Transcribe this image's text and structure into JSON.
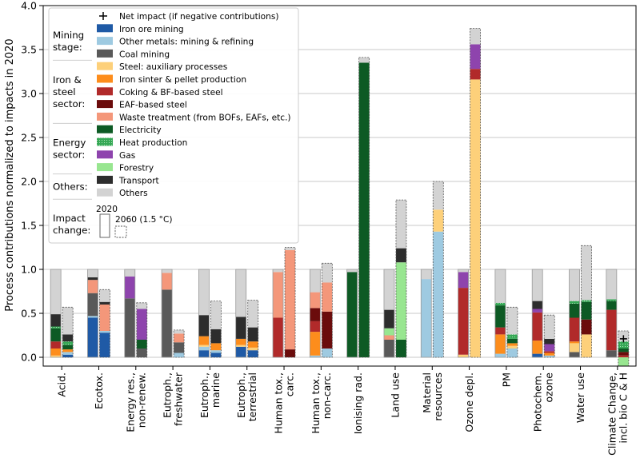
{
  "chart_data": {
    "type": "bar",
    "stacked": true,
    "ylabel": "Process contributions normalized to impacts in 2020",
    "ylim": [
      -0.1,
      4.0
    ],
    "yticks": [
      "0.0",
      "0.5",
      "1.0",
      "1.5",
      "2.0",
      "2.5",
      "3.0",
      "3.5",
      "4.0"
    ],
    "grid": "horizontal",
    "legend_position": "top-left",
    "categories": [
      {
        "label": [
          "Acid."
        ]
      },
      {
        "label": [
          "Ecotox."
        ]
      },
      {
        "label": [
          "Energy res.,",
          "non-renew."
        ]
      },
      {
        "label": [
          "Eutroph.,",
          "freshwater"
        ]
      },
      {
        "label": [
          "Eutroph.,",
          "marine"
        ]
      },
      {
        "label": [
          "Eutroph.,",
          "terrestrial"
        ]
      },
      {
        "label": [
          "Human tox.,",
          "carc."
        ]
      },
      {
        "label": [
          "Human tox.,",
          "non-carc."
        ]
      },
      {
        "label": [
          "Ionising rad."
        ]
      },
      {
        "label": [
          "Land use"
        ]
      },
      {
        "label": [
          "Material",
          "resources"
        ]
      },
      {
        "label": [
          "Ozone depl."
        ]
      },
      {
        "label": [
          "PM"
        ]
      },
      {
        "label": [
          "Photochem.",
          "ozone"
        ]
      },
      {
        "label": [
          "Water use"
        ]
      },
      {
        "label": [
          "Climate Change,",
          "incl. bio C & H"
        ]
      }
    ],
    "processes": [
      {
        "key": "iron_ore",
        "name": "Iron ore mining",
        "color": "#1f5aa6"
      },
      {
        "key": "other_metals",
        "name": "Other metals: mining & refining",
        "color": "#9ecae1"
      },
      {
        "key": "coal",
        "name": "Coal mining",
        "color": "#595959"
      },
      {
        "key": "steel_aux",
        "name": "Steel: auxiliary processes",
        "color": "#fdd07a"
      },
      {
        "key": "sinter",
        "name": "Iron sinter & pellet production",
        "color": "#fd8d1c"
      },
      {
        "key": "coking_bf",
        "name": "Coking & BF-based steel",
        "color": "#b12a2a"
      },
      {
        "key": "eaf",
        "name": "EAF-based steel",
        "color": "#6b0c0c"
      },
      {
        "key": "waste",
        "name": "Waste treatment (from BOFs, EAFs, etc.)",
        "color": "#f4977a"
      },
      {
        "key": "electricity",
        "name": "Electricity",
        "color": "#0d5a24"
      },
      {
        "key": "heat",
        "name": "Heat production",
        "color": "#35a855"
      },
      {
        "key": "gas",
        "name": "Gas",
        "color": "#8e44ad"
      },
      {
        "key": "forestry",
        "name": "Forestry",
        "color": "#98e690"
      },
      {
        "key": "transport",
        "name": "Transport",
        "color": "#2d2d2d"
      },
      {
        "key": "others",
        "name": "Others",
        "color": "#d3d3d3"
      }
    ],
    "series": [
      {
        "name": "2020",
        "values": [
          {
            "iron_ore": 0.0,
            "other_metals": 0.0,
            "coal": 0.0,
            "steel_aux": 0.02,
            "sinter": 0.08,
            "coking_bf": 0.08,
            "eaf": 0.0,
            "waste": 0.0,
            "electricity": 0.15,
            "heat": 0.02,
            "gas": 0.0,
            "forestry": 0.0,
            "transport": 0.14,
            "others": 0.51
          },
          {
            "iron_ore": 0.45,
            "other_metals": 0.02,
            "coal": 0.26,
            "steel_aux": 0.0,
            "sinter": 0.0,
            "coking_bf": 0.0,
            "eaf": 0.0,
            "waste": 0.15,
            "electricity": 0.0,
            "heat": 0.0,
            "gas": 0.0,
            "forestry": 0.0,
            "transport": 0.03,
            "others": 0.09
          },
          {
            "iron_ore": 0.0,
            "other_metals": 0.0,
            "coal": 0.67,
            "steel_aux": 0.0,
            "sinter": 0.0,
            "coking_bf": 0.0,
            "eaf": 0.0,
            "waste": 0.0,
            "electricity": 0.0,
            "heat": 0.0,
            "gas": 0.25,
            "forestry": 0.0,
            "transport": 0.0,
            "others": 0.08
          },
          {
            "iron_ore": 0.0,
            "other_metals": 0.0,
            "coal": 0.77,
            "steel_aux": 0.0,
            "sinter": 0.0,
            "coking_bf": 0.0,
            "eaf": 0.0,
            "waste": 0.19,
            "electricity": 0.0,
            "heat": 0.0,
            "gas": 0.0,
            "forestry": 0.0,
            "transport": 0.0,
            "others": 0.04
          },
          {
            "iron_ore": 0.08,
            "other_metals": 0.04,
            "coal": 0.0,
            "steel_aux": 0.02,
            "sinter": 0.1,
            "coking_bf": 0.0,
            "eaf": 0.0,
            "waste": 0.0,
            "electricity": 0.0,
            "heat": 0.0,
            "gas": 0.0,
            "forestry": 0.0,
            "transport": 0.24,
            "others": 0.52
          },
          {
            "iron_ore": 0.12,
            "other_metals": 0.0,
            "coal": 0.0,
            "steel_aux": 0.02,
            "sinter": 0.07,
            "coking_bf": 0.0,
            "eaf": 0.0,
            "waste": 0.0,
            "electricity": 0.0,
            "heat": 0.0,
            "gas": 0.0,
            "forestry": 0.0,
            "transport": 0.25,
            "others": 0.54
          },
          {
            "iron_ore": 0.0,
            "other_metals": 0.0,
            "coal": 0.0,
            "steel_aux": 0.0,
            "sinter": 0.0,
            "coking_bf": 0.45,
            "eaf": 0.0,
            "waste": 0.52,
            "electricity": 0.0,
            "heat": 0.0,
            "gas": 0.0,
            "forestry": 0.0,
            "transport": 0.0,
            "others": 0.03
          },
          {
            "iron_ore": 0.0,
            "other_metals": 0.02,
            "coal": 0.0,
            "steel_aux": 0.0,
            "sinter": 0.27,
            "coking_bf": 0.12,
            "eaf": 0.15,
            "waste": 0.18,
            "electricity": 0.0,
            "heat": 0.0,
            "gas": 0.0,
            "forestry": 0.0,
            "transport": 0.0,
            "others": 0.26
          },
          {
            "iron_ore": 0.0,
            "other_metals": 0.0,
            "coal": 0.0,
            "steel_aux": 0.0,
            "sinter": 0.0,
            "coking_bf": 0.0,
            "eaf": 0.0,
            "waste": 0.0,
            "electricity": 0.97,
            "heat": 0.0,
            "gas": 0.0,
            "forestry": 0.0,
            "transport": 0.0,
            "others": 0.03
          },
          {
            "iron_ore": 0.0,
            "other_metals": 0.0,
            "coal": 0.2,
            "steel_aux": 0.0,
            "sinter": 0.0,
            "coking_bf": 0.0,
            "eaf": 0.0,
            "waste": 0.05,
            "electricity": 0.0,
            "heat": 0.0,
            "gas": 0.0,
            "forestry": 0.08,
            "transport": 0.21,
            "others": 0.46
          },
          {
            "iron_ore": 0.0,
            "other_metals": 0.89,
            "coal": 0.0,
            "steel_aux": 0.0,
            "sinter": 0.0,
            "coking_bf": 0.0,
            "eaf": 0.0,
            "waste": 0.0,
            "electricity": 0.0,
            "heat": 0.0,
            "gas": 0.0,
            "forestry": 0.0,
            "transport": 0.0,
            "others": 0.11
          },
          {
            "iron_ore": 0.0,
            "other_metals": 0.0,
            "coal": 0.0,
            "steel_aux": 0.03,
            "sinter": 0.0,
            "coking_bf": 0.76,
            "eaf": 0.0,
            "waste": 0.0,
            "electricity": 0.0,
            "heat": 0.0,
            "gas": 0.18,
            "forestry": 0.0,
            "transport": 0.0,
            "others": 0.03
          },
          {
            "iron_ore": 0.0,
            "other_metals": 0.04,
            "coal": 0.0,
            "steel_aux": 0.0,
            "sinter": 0.22,
            "coking_bf": 0.08,
            "eaf": 0.0,
            "waste": 0.0,
            "electricity": 0.25,
            "heat": 0.03,
            "gas": 0.0,
            "forestry": 0.0,
            "transport": 0.0,
            "others": 0.38
          },
          {
            "iron_ore": 0.04,
            "other_metals": 0.0,
            "coal": 0.0,
            "steel_aux": 0.0,
            "sinter": 0.15,
            "coking_bf": 0.32,
            "eaf": 0.0,
            "waste": 0.0,
            "electricity": 0.0,
            "heat": 0.0,
            "gas": 0.04,
            "forestry": 0.0,
            "transport": 0.09,
            "others": 0.36
          },
          {
            "iron_ore": 0.0,
            "other_metals": 0.0,
            "coal": 0.06,
            "steel_aux": 0.1,
            "sinter": 0.02,
            "coking_bf": 0.27,
            "eaf": 0.0,
            "waste": 0.0,
            "electricity": 0.16,
            "heat": 0.03,
            "gas": 0.0,
            "forestry": 0.0,
            "transport": 0.0,
            "others": 0.36
          },
          {
            "iron_ore": 0.0,
            "other_metals": 0.0,
            "coal": 0.08,
            "steel_aux": 0.0,
            "sinter": 0.0,
            "coking_bf": 0.46,
            "eaf": 0.0,
            "waste": 0.0,
            "electricity": 0.1,
            "heat": 0.02,
            "gas": 0.0,
            "forestry": 0.0,
            "transport": 0.0,
            "others": 0.34
          }
        ]
      },
      {
        "name": "2060 (1.5 °C)",
        "values": [
          {
            "iron_ore": 0.03,
            "other_metals": 0.03,
            "coal": 0.0,
            "steel_aux": 0.0,
            "sinter": 0.03,
            "coking_bf": 0.0,
            "eaf": 0.0,
            "waste": 0.0,
            "electricity": 0.05,
            "heat": 0.04,
            "gas": 0.0,
            "forestry": 0.0,
            "transport": 0.08,
            "others": 0.31
          },
          {
            "iron_ore": 0.28,
            "other_metals": 0.02,
            "coal": 0.0,
            "steel_aux": 0.0,
            "sinter": 0.0,
            "coking_bf": 0.0,
            "eaf": 0.0,
            "waste": 0.3,
            "electricity": 0.0,
            "heat": 0.0,
            "gas": 0.0,
            "forestry": 0.0,
            "transport": 0.03,
            "others": 0.14
          },
          {
            "iron_ore": 0.0,
            "other_metals": 0.0,
            "coal": 0.1,
            "steel_aux": 0.0,
            "sinter": 0.0,
            "coking_bf": 0.0,
            "eaf": 0.0,
            "waste": 0.0,
            "electricity": 0.1,
            "heat": 0.0,
            "gas": 0.35,
            "forestry": 0.0,
            "transport": 0.0,
            "others": 0.07
          },
          {
            "iron_ore": 0.0,
            "other_metals": 0.05,
            "coal": 0.12,
            "steel_aux": 0.0,
            "sinter": 0.0,
            "coking_bf": 0.0,
            "eaf": 0.0,
            "waste": 0.1,
            "electricity": 0.0,
            "heat": 0.0,
            "gas": 0.0,
            "forestry": 0.0,
            "transport": 0.0,
            "others": 0.04
          },
          {
            "iron_ore": 0.05,
            "other_metals": 0.03,
            "coal": 0.0,
            "steel_aux": 0.0,
            "sinter": 0.08,
            "coking_bf": 0.0,
            "eaf": 0.0,
            "waste": 0.0,
            "electricity": 0.0,
            "heat": 0.0,
            "gas": 0.0,
            "forestry": 0.0,
            "transport": 0.16,
            "others": 0.32
          },
          {
            "iron_ore": 0.08,
            "other_metals": 0.0,
            "coal": 0.0,
            "steel_aux": 0.03,
            "sinter": 0.07,
            "coking_bf": 0.0,
            "eaf": 0.0,
            "waste": 0.0,
            "electricity": 0.0,
            "heat": 0.0,
            "gas": 0.0,
            "forestry": 0.0,
            "transport": 0.16,
            "others": 0.31
          },
          {
            "iron_ore": 0.0,
            "other_metals": 0.0,
            "coal": 0.0,
            "steel_aux": 0.0,
            "sinter": 0.0,
            "coking_bf": 0.0,
            "eaf": 0.09,
            "waste": 1.13,
            "electricity": 0.0,
            "heat": 0.0,
            "gas": 0.0,
            "forestry": 0.0,
            "transport": 0.0,
            "others": 0.03
          },
          {
            "iron_ore": 0.0,
            "other_metals": 0.1,
            "coal": 0.0,
            "steel_aux": 0.0,
            "sinter": 0.0,
            "coking_bf": 0.0,
            "eaf": 0.42,
            "waste": 0.33,
            "electricity": 0.0,
            "heat": 0.0,
            "gas": 0.0,
            "forestry": 0.0,
            "transport": 0.0,
            "others": 0.22
          },
          {
            "iron_ore": 0.0,
            "other_metals": 0.0,
            "coal": 0.0,
            "steel_aux": 0.0,
            "sinter": 0.0,
            "coking_bf": 0.0,
            "eaf": 0.0,
            "waste": 0.0,
            "electricity": 3.35,
            "heat": 0.0,
            "gas": 0.0,
            "forestry": 0.0,
            "transport": 0.0,
            "others": 0.06
          },
          {
            "iron_ore": 0.0,
            "other_metals": 0.0,
            "coal": 0.0,
            "steel_aux": 0.0,
            "sinter": 0.0,
            "coking_bf": 0.0,
            "eaf": 0.0,
            "waste": 0.0,
            "electricity": 0.2,
            "heat": 0.0,
            "gas": 0.0,
            "forestry": 0.88,
            "transport": 0.16,
            "others": 0.55
          },
          {
            "iron_ore": 0.0,
            "other_metals": 1.43,
            "coal": 0.0,
            "steel_aux": 0.25,
            "sinter": 0.0,
            "coking_bf": 0.0,
            "eaf": 0.0,
            "waste": 0.0,
            "electricity": 0.0,
            "heat": 0.0,
            "gas": 0.0,
            "forestry": 0.0,
            "transport": 0.0,
            "others": 0.32
          },
          {
            "iron_ore": 0.0,
            "other_metals": 0.0,
            "coal": 0.0,
            "steel_aux": 3.16,
            "sinter": 0.0,
            "coking_bf": 0.12,
            "eaf": 0.0,
            "waste": 0.0,
            "electricity": 0.0,
            "heat": 0.0,
            "gas": 0.28,
            "forestry": 0.0,
            "transport": 0.0,
            "others": 0.18
          },
          {
            "iron_ore": 0.0,
            "other_metals": 0.1,
            "coal": 0.0,
            "steel_aux": 0.03,
            "sinter": 0.03,
            "coking_bf": 0.0,
            "eaf": 0.0,
            "waste": 0.0,
            "electricity": 0.05,
            "heat": 0.05,
            "gas": 0.0,
            "forestry": 0.0,
            "transport": 0.0,
            "others": 0.31
          },
          {
            "iron_ore": 0.0,
            "other_metals": 0.02,
            "coal": 0.0,
            "steel_aux": 0.0,
            "sinter": 0.03,
            "coking_bf": 0.02,
            "eaf": 0.0,
            "waste": 0.0,
            "electricity": 0.0,
            "heat": 0.0,
            "gas": 0.08,
            "forestry": 0.0,
            "transport": 0.06,
            "others": 0.27
          },
          {
            "iron_ore": 0.0,
            "other_metals": 0.0,
            "coal": 0.0,
            "steel_aux": 0.26,
            "sinter": 0.0,
            "coking_bf": 0.0,
            "eaf": 0.17,
            "waste": 0.0,
            "electricity": 0.2,
            "heat": 0.02,
            "gas": 0.0,
            "forestry": 0.0,
            "transport": 0.0,
            "others": 0.62
          },
          {
            "iron_ore": 0.0,
            "other_metals": 0.0,
            "coal": 0.0,
            "steel_aux": 0.0,
            "sinter": 0.0,
            "coking_bf": 0.02,
            "eaf": 0.04,
            "waste": 0.0,
            "electricity": 0.04,
            "heat": 0.08,
            "gas": 0.0,
            "forestry": -0.1,
            "transport": 0.0,
            "others": 0.12
          }
        ]
      }
    ],
    "net_impact": [
      {
        "category_index": 15,
        "value": 0.21
      }
    ]
  },
  "legend": {
    "net_impact_label": "Net impact (if negative contributions)",
    "groups": [
      {
        "label": [
          "Mining",
          "stage:"
        ],
        "items": [
          "Iron ore mining",
          "Other metals: mining & refining",
          "Coal mining"
        ]
      },
      {
        "label": [
          "Iron &",
          "steel",
          "sector:"
        ],
        "items": [
          "Steel: auxiliary processes",
          "Iron sinter & pellet production",
          "Coking & BF-based steel",
          "EAF-based steel",
          "Waste treatment (from BOFs, EAFs, etc.)"
        ]
      },
      {
        "label": [
          "Energy",
          "sector:"
        ],
        "items": [
          "Electricity",
          "Heat production",
          "Gas",
          "Forestry"
        ]
      },
      {
        "label": [
          "Others:"
        ],
        "items": [
          "Transport",
          "Others"
        ]
      }
    ],
    "impact_change": {
      "label": [
        "Impact",
        "change:"
      ],
      "year_2020": "2020",
      "year_2060": "2060 (1.5 °C)"
    }
  }
}
